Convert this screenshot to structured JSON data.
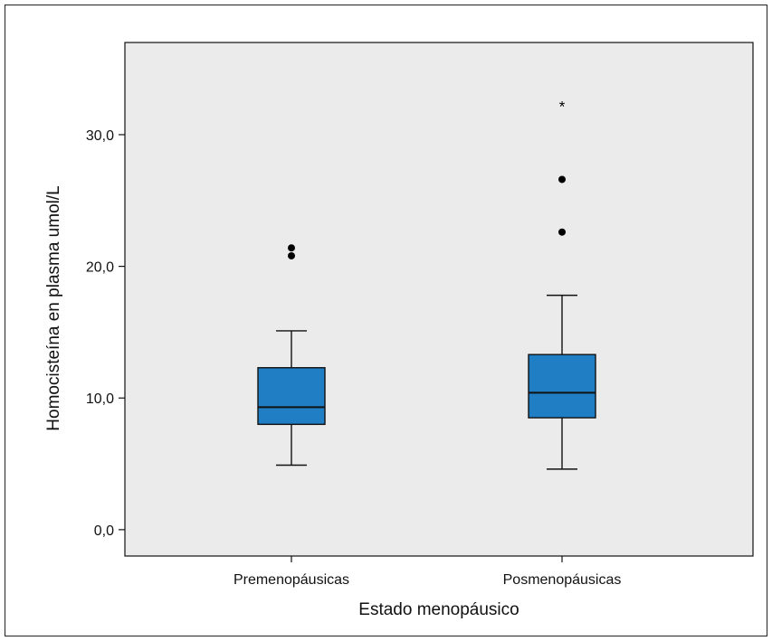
{
  "chart_data": {
    "type": "box",
    "title": "",
    "xlabel": "Estado menopáusico",
    "ylabel": "Homocisteína en plasma umol/L",
    "ylim": [
      -2,
      37
    ],
    "yticks": [
      {
        "value": 0,
        "label": "0,0"
      },
      {
        "value": 10,
        "label": "10,0"
      },
      {
        "value": 20,
        "label": "20,0"
      },
      {
        "value": 30,
        "label": "30,0"
      }
    ],
    "categories": [
      "Premenopáusicas",
      "Posmenopáusicas"
    ],
    "boxes": [
      {
        "category": "Premenopáusicas",
        "whisker_low": 4.9,
        "q1": 8.0,
        "median": 9.3,
        "q3": 12.3,
        "whisker_high": 15.1,
        "outliers": [
          20.8,
          21.4
        ],
        "extremes": []
      },
      {
        "category": "Posmenopáusicas",
        "whisker_low": 4.6,
        "q1": 8.5,
        "median": 10.4,
        "q3": 13.3,
        "whisker_high": 17.8,
        "outliers": [
          22.6,
          26.6
        ],
        "extremes": [
          32.3
        ]
      }
    ],
    "colors": {
      "plot_background": "#ebebeb",
      "box_fill": "#1f7ec4",
      "line": "#111111"
    },
    "grid": false,
    "legend": "none"
  }
}
